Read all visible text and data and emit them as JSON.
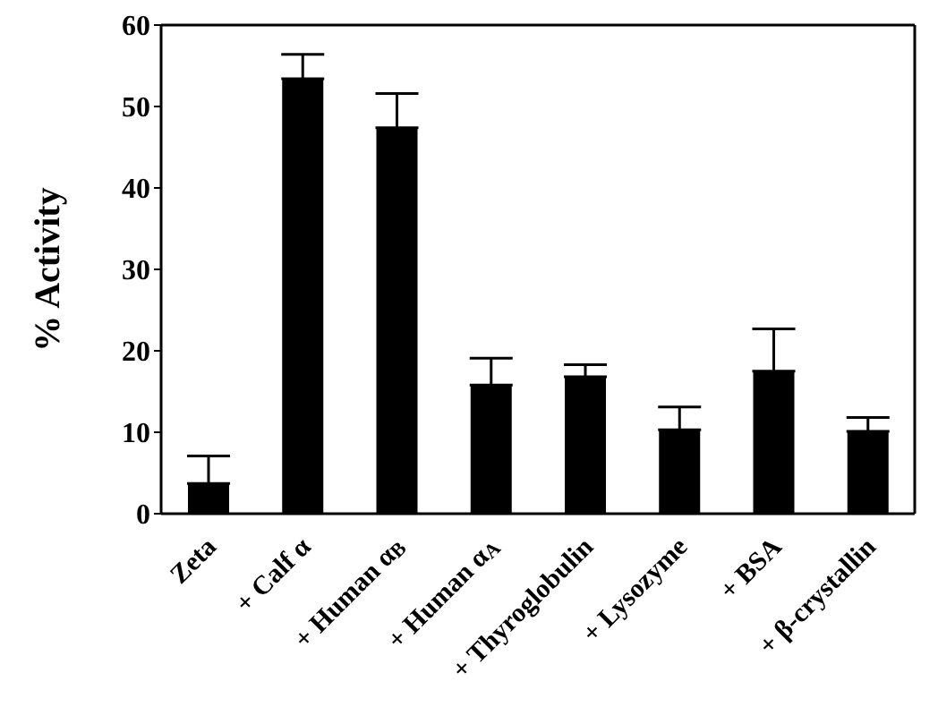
{
  "chart_data": {
    "type": "bar",
    "ylabel": "% Activity",
    "categories": [
      "Zeta",
      "+ Calf α",
      "+ Human α$_{B}$",
      "+ Human α$_{A}$",
      "+ Thyroglobulin",
      "+ Lysozyme",
      "+ BSA",
      "+ β-crystallin"
    ],
    "values": [
      3.7,
      53.4,
      47.4,
      15.8,
      16.8,
      10.3,
      17.5,
      10.1
    ],
    "errors": [
      [
        3.7,
        7.1
      ],
      [
        53.4,
        56.4
      ],
      [
        47.4,
        51.6
      ],
      [
        15.8,
        19.1
      ],
      [
        16.8,
        18.3
      ],
      [
        10.3,
        13.1
      ],
      [
        17.5,
        22.7
      ],
      [
        10.1,
        11.8
      ]
    ],
    "color": "#000000",
    "ylim": [
      0,
      60
    ],
    "yticks": [
      0,
      10,
      20,
      30,
      40,
      50,
      60
    ],
    "grid": false,
    "legend": false
  }
}
